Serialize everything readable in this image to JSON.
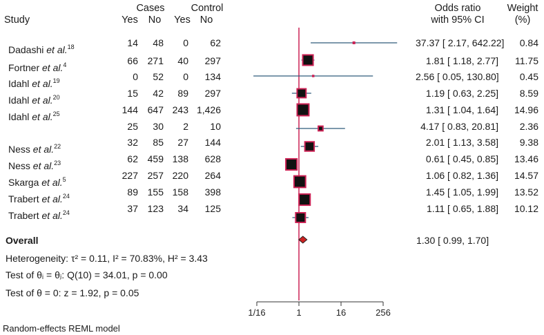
{
  "header": {
    "study": "Study",
    "cases": "Cases",
    "control": "Control",
    "yes": "Yes",
    "no": "No",
    "or_line1": "Odds ratio",
    "or_line2": "with 95% CI",
    "weight_line1": "Weight",
    "weight_line2": "(%)"
  },
  "studies": [
    {
      "author": "Dadashi",
      "etal": "et al.",
      "ref": "18",
      "cases_yes": "14",
      "cases_no": "48",
      "ctrl_yes": "0",
      "ctrl_no": "62",
      "ci_text": "37.37 [ 2.17, 642.22]",
      "weight": "0.84"
    },
    {
      "author": "Fortner",
      "etal": "et al.",
      "ref": "4",
      "cases_yes": "66",
      "cases_no": "271",
      "ctrl_yes": "40",
      "ctrl_no": "297",
      "ci_text": "1.81 [ 1.18, 2.77]",
      "weight": "11.75"
    },
    {
      "author": "Idahl",
      "etal": "et al.",
      "ref": "19",
      "cases_yes": "0",
      "cases_no": "52",
      "ctrl_yes": "0",
      "ctrl_no": "134",
      "ci_text": "2.56 [ 0.05, 130.80]",
      "weight": "0.45"
    },
    {
      "author": "Idahl",
      "etal": "et al.",
      "ref": "20",
      "cases_yes": "15",
      "cases_no": "42",
      "ctrl_yes": "89",
      "ctrl_no": "297",
      "ci_text": "1.19 [ 0.63, 2.25]",
      "weight": "8.59"
    },
    {
      "author": "Idahl",
      "etal": "et al.",
      "ref": "25",
      "cases_yes": "144",
      "cases_no": "647",
      "ctrl_yes": "243",
      "ctrl_no": "1,426",
      "ci_text": "1.31 [ 1.04, 1.64]",
      "weight": "14.96"
    },
    {
      "author": "",
      "etal": "",
      "ref": "",
      "cases_yes": "25",
      "cases_no": "30",
      "ctrl_yes": "2",
      "ctrl_no": "10",
      "ci_text": "4.17 [ 0.83, 20.81]",
      "weight": "2.36"
    },
    {
      "author": "Ness",
      "etal": "et al.",
      "ref": "22",
      "cases_yes": "32",
      "cases_no": "85",
      "ctrl_yes": "27",
      "ctrl_no": "144",
      "ci_text": "2.01 [ 1.13, 3.58]",
      "weight": "9.38"
    },
    {
      "author": "Ness",
      "etal": "et al.",
      "ref": "23",
      "cases_yes": "62",
      "cases_no": "459",
      "ctrl_yes": "138",
      "ctrl_no": "628",
      "ci_text": "0.61 [ 0.45, 0.85]",
      "weight": "13.46"
    },
    {
      "author": "Skarga",
      "etal": "et al.",
      "ref": "5",
      "cases_yes": "227",
      "cases_no": "257",
      "ctrl_yes": "220",
      "ctrl_no": "264",
      "ci_text": "1.06 [ 0.82, 1.36]",
      "weight": "14.57"
    },
    {
      "author": "Trabert",
      "etal": "et al.",
      "ref": "24",
      "cases_yes": "89",
      "cases_no": "155",
      "ctrl_yes": "158",
      "ctrl_no": "398",
      "ci_text": "1.45 [ 1.05, 1.99]",
      "weight": "13.52"
    },
    {
      "author": "Trabert",
      "etal": "et al.",
      "ref": "24",
      "cases_yes": "37",
      "cases_no": "123",
      "ctrl_yes": "34",
      "ctrl_no": "125",
      "ci_text": "1.11 [ 0.65, 1.88]",
      "weight": "10.12"
    }
  ],
  "overall": {
    "label": "Overall",
    "ci_text": "1.30 [ 0.99, 1.70]"
  },
  "stats": {
    "heterogeneity": "Heterogeneity: τ² = 0.11, I² = 70.83%, H² = 3.43",
    "test_theta_eq": "Test of θᵢ = θⱼ: Q(10) = 34.01, p = 0.00",
    "test_theta_zero": "Test of θ = 0: z = 1.92, p = 0.05"
  },
  "footer": "Random-effects REML model",
  "chart_data": {
    "type": "forest",
    "scale": "log2",
    "x_ticks": [
      0.0625,
      1,
      16,
      256
    ],
    "x_tick_labels": [
      "1/16",
      "1",
      "16",
      "256"
    ],
    "reference_line": 1,
    "colors": {
      "reference": "#cc2255",
      "marker": "#cc2255",
      "box_fill": "#111111",
      "ci_line": "#2e5a7a",
      "diamond": "#cc2222"
    },
    "points": [
      {
        "or": 37.37,
        "lo": 2.17,
        "hi": 642.22,
        "weight": 0.84
      },
      {
        "or": 1.81,
        "lo": 1.18,
        "hi": 2.77,
        "weight": 11.75
      },
      {
        "or": 2.56,
        "lo": 0.05,
        "hi": 130.8,
        "weight": 0.45
      },
      {
        "or": 1.19,
        "lo": 0.63,
        "hi": 2.25,
        "weight": 8.59
      },
      {
        "or": 1.31,
        "lo": 1.04,
        "hi": 1.64,
        "weight": 14.96
      },
      {
        "or": 4.17,
        "lo": 0.83,
        "hi": 20.81,
        "weight": 2.36
      },
      {
        "or": 2.01,
        "lo": 1.13,
        "hi": 3.58,
        "weight": 9.38
      },
      {
        "or": 0.61,
        "lo": 0.45,
        "hi": 0.85,
        "weight": 13.46
      },
      {
        "or": 1.06,
        "lo": 0.82,
        "hi": 1.36,
        "weight": 14.57
      },
      {
        "or": 1.45,
        "lo": 1.05,
        "hi": 1.99,
        "weight": 13.52
      },
      {
        "or": 1.11,
        "lo": 0.65,
        "hi": 1.88,
        "weight": 10.12
      }
    ],
    "overall": {
      "or": 1.3,
      "lo": 0.99,
      "hi": 1.7
    }
  }
}
